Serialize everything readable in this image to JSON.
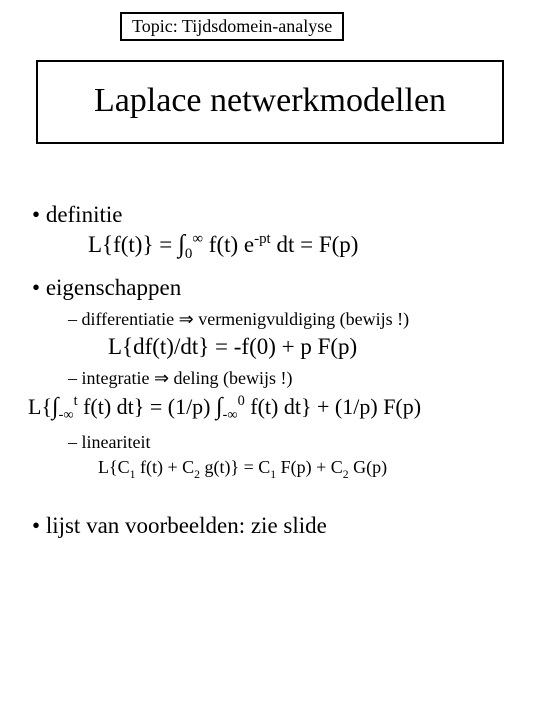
{
  "topic": "Topic: Tijdsdomein-analyse",
  "title": "Laplace netwerkmodellen",
  "items": {
    "definitie": "definitie",
    "def_formula_pre": "L{f(t)} = ",
    "def_formula_post": " f(t) e",
    "def_exp": "-pt",
    "def_tail": " dt = F(p)",
    "int_lower1": "0",
    "int_upper1": "∞",
    "eigenschappen": "eigenschappen",
    "diff": "differentiatie ⇒ vermenigvuldiging (bewijs !)",
    "diff_formula": "L{df(t)/dt} = -f(0) + p F(p)",
    "integ": "integratie ⇒ deling (bewijs !)",
    "integ_pre": "L{",
    "integ_low_a": "-∞",
    "integ_up_a": "t",
    "integ_mid1": " f(t) dt} = (1/p) ",
    "integ_low_b": "-∞",
    "integ_up_b": "0",
    "integ_mid2": " f(t) dt} + (1/p) F(p)",
    "lineariteit": "lineariteit",
    "lin_pre": "L{C",
    "s1": "1",
    "lin_a": " f(t) + C",
    "s2": "2",
    "lin_b": " g(t)} = C",
    "lin_c": " F(p) + C",
    "lin_d": " G(p)",
    "lijst": "lijst van voorbeelden: zie slide"
  }
}
